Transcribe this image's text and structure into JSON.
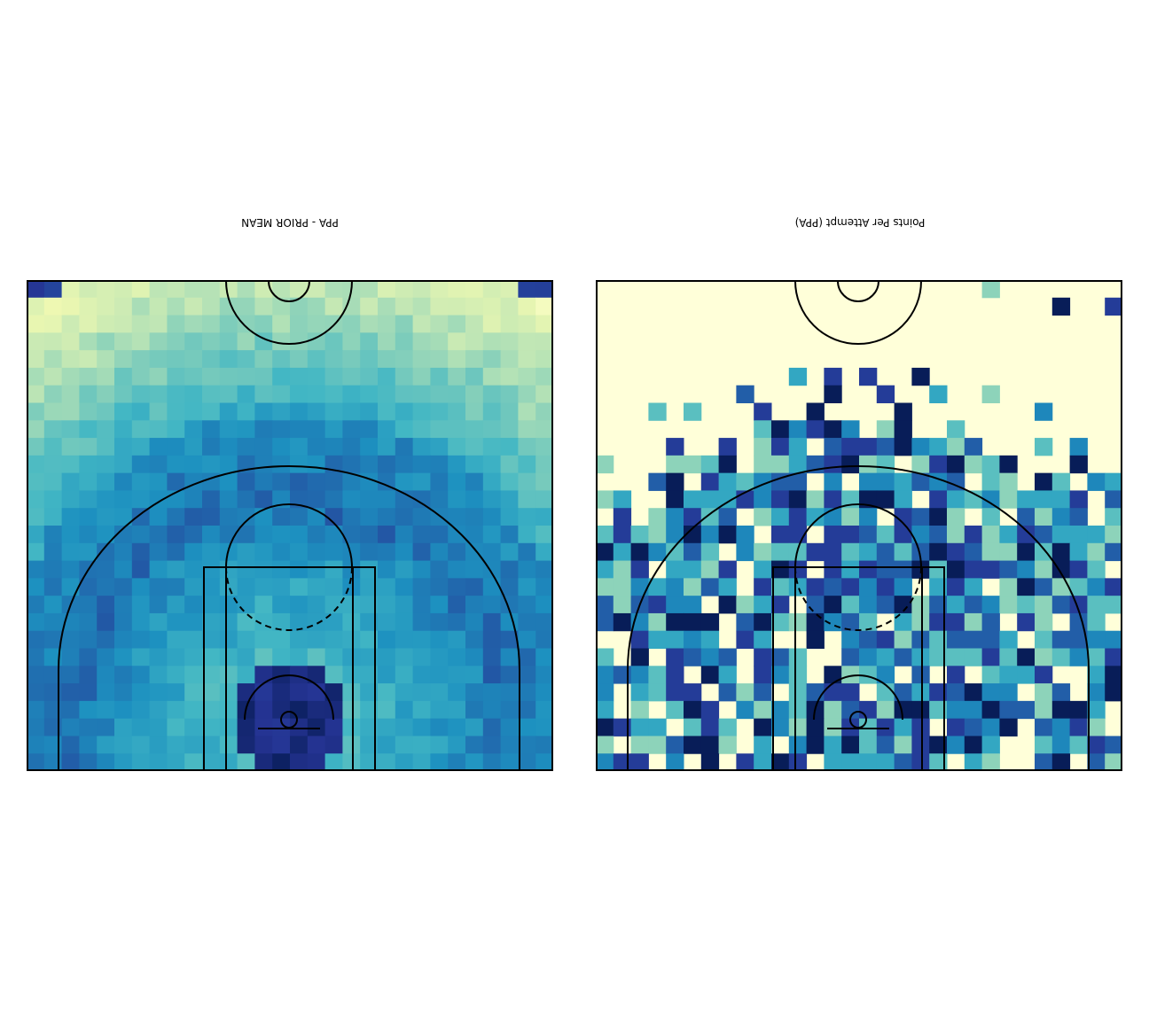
{
  "chart_data": [
    {
      "type": "heatmap",
      "title": "PPA - PRIOR MEAN",
      "title_rotated_180": true,
      "colormap": "YlGnBu",
      "grid": {
        "rows": 28,
        "cols": 30
      },
      "court_overlay": "half-court, upside down",
      "description_of_values": "smoothed prior mean points per attempt by shot location",
      "levels": [
        "000000000000000000000000000000",
        "111111111111111111111111111111",
        "111111111111111111111111111111"
      ]
    },
    {
      "type": "heatmap",
      "title": "Points Per Attempt (PPA)",
      "title_rotated_180": true,
      "colormap": "YlGnBu",
      "grid": {
        "rows": 28,
        "cols": 30
      },
      "court_overlay": "half-court, upside down"
    }
  ],
  "page": {
    "left_title": "PPA - PRIOR MEAN",
    "right_title": "Points Per Attempt (PPA)"
  }
}
